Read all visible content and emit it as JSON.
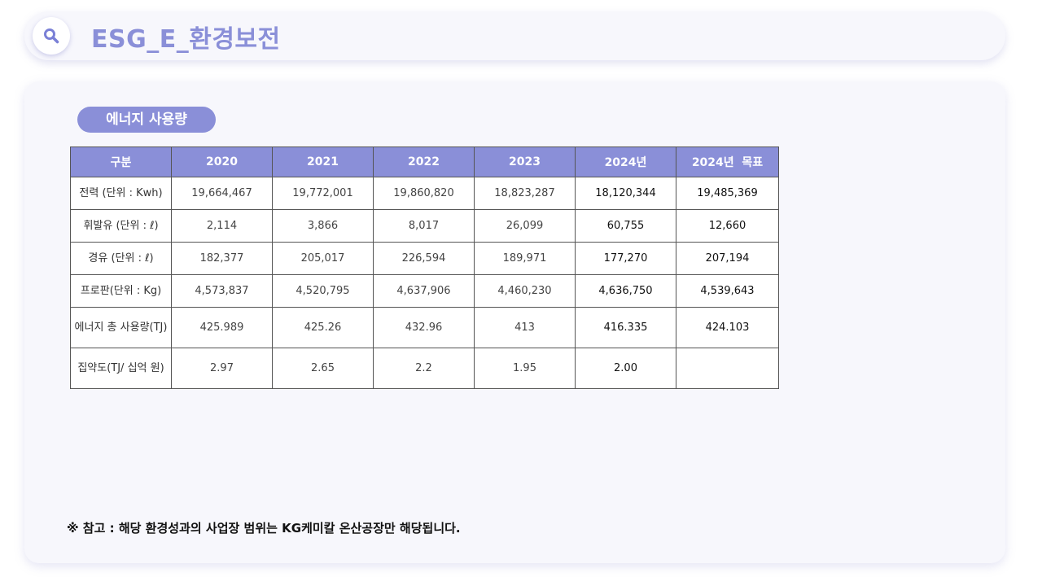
{
  "header": {
    "title": "ESG_E_환경보전"
  },
  "section": {
    "label": "에너지 사용량"
  },
  "table": {
    "headers": [
      "구분",
      "2020",
      "2021",
      "2022",
      "2023",
      "2024년",
      "2024년  목표"
    ],
    "rows": [
      {
        "label": "전력 (단위 : Kwh)",
        "cells": [
          "19,664,467",
          "19,772,001",
          "19,860,820",
          "18,823,287",
          "18,120,344",
          "19,485,369"
        ]
      },
      {
        "label": "휘발유 (단위 : ℓ)",
        "cells": [
          "2,114",
          "3,866",
          "8,017",
          "26,099",
          "60,755",
          "12,660"
        ]
      },
      {
        "label": "경유 (단위 : ℓ)",
        "cells": [
          "182,377",
          "205,017",
          "226,594",
          "189,971",
          "177,270",
          "207,194"
        ]
      },
      {
        "label": "프로판(단위 : Kg)",
        "cells": [
          "4,573,837",
          "4,520,795",
          "4,637,906",
          "4,460,230",
          "4,636,750",
          "4,539,643"
        ]
      },
      {
        "label": "에너지 총 사용량(TJ)",
        "cells": [
          "425.989",
          "425.26",
          "432.96",
          "413",
          "416.335",
          "424.103"
        ]
      },
      {
        "label": "집약도(TJ/ 십억 원)",
        "cells": [
          "2.97",
          "2.65",
          "2.2",
          "1.95",
          "2.00",
          ""
        ]
      }
    ]
  },
  "footnote": "※ 참고 : 해당 환경성과의 사업장 범위는 KG케미칼 온산공장만 해당됩니다.",
  "colors": {
    "accent": "#8a8fd8",
    "panel": "#f7f7fc"
  },
  "icons": {
    "search": "search-icon"
  }
}
